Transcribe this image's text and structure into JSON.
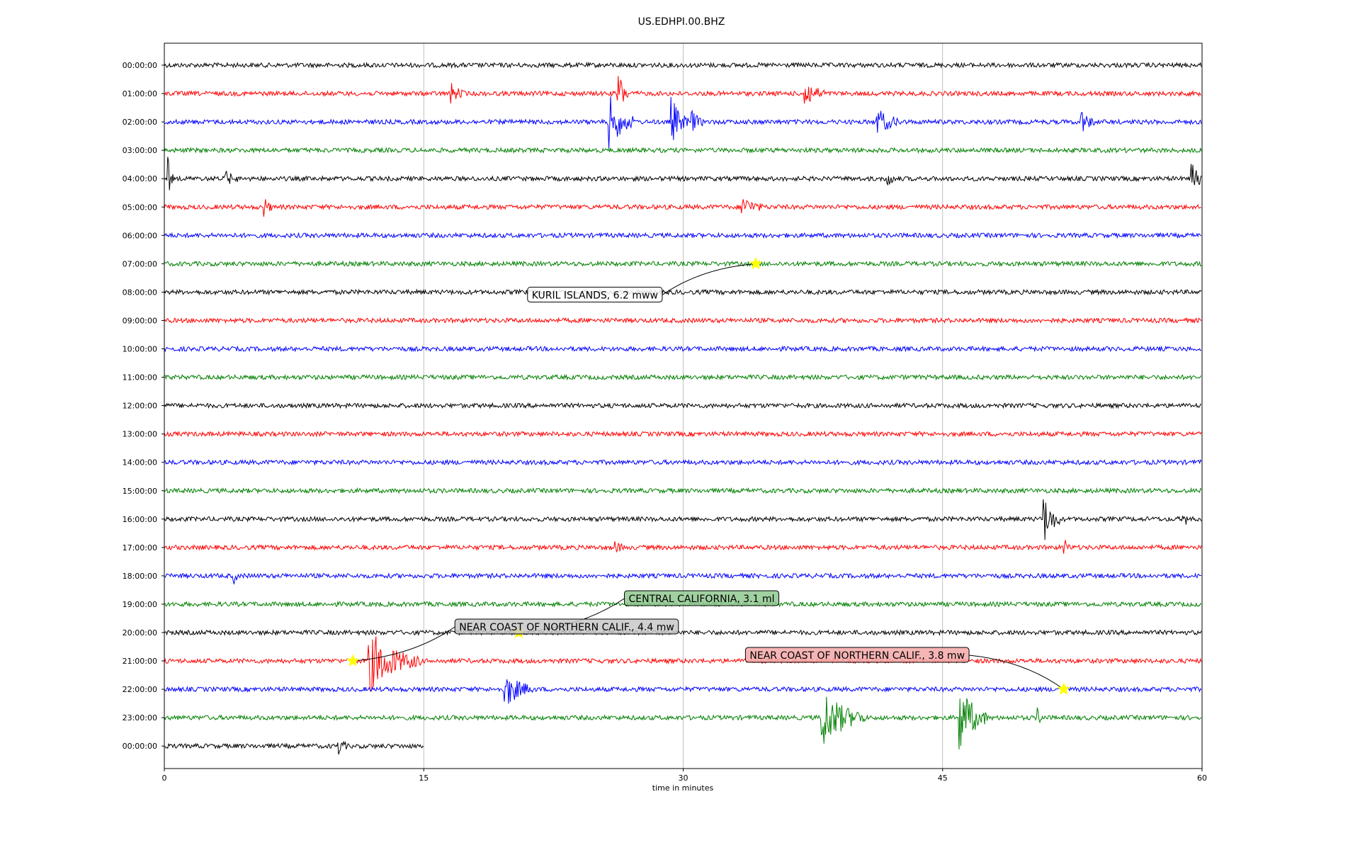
{
  "chart_data": {
    "type": "line",
    "title": "US.EDHPI.00.BHZ",
    "xlabel": "time in minutes",
    "ylabel": "",
    "xlim": [
      0,
      60
    ],
    "xticks": [
      0,
      15,
      30,
      45,
      60
    ],
    "grid_x": true,
    "trace_colors": [
      "#000000",
      "#ff0000",
      "#0000ff",
      "#008000"
    ],
    "rows": [
      {
        "label": "00:00:00",
        "end_minute": 60
      },
      {
        "label": "01:00:00",
        "end_minute": 60
      },
      {
        "label": "02:00:00",
        "end_minute": 60
      },
      {
        "label": "03:00:00",
        "end_minute": 60
      },
      {
        "label": "04:00:00",
        "end_minute": 60
      },
      {
        "label": "05:00:00",
        "end_minute": 60
      },
      {
        "label": "06:00:00",
        "end_minute": 60
      },
      {
        "label": "07:00:00",
        "end_minute": 60
      },
      {
        "label": "08:00:00",
        "end_minute": 60
      },
      {
        "label": "09:00:00",
        "end_minute": 60
      },
      {
        "label": "10:00:00",
        "end_minute": 60
      },
      {
        "label": "11:00:00",
        "end_minute": 60
      },
      {
        "label": "12:00:00",
        "end_minute": 60
      },
      {
        "label": "13:00:00",
        "end_minute": 60
      },
      {
        "label": "14:00:00",
        "end_minute": 60
      },
      {
        "label": "15:00:00",
        "end_minute": 60
      },
      {
        "label": "16:00:00",
        "end_minute": 60
      },
      {
        "label": "17:00:00",
        "end_minute": 60
      },
      {
        "label": "18:00:00",
        "end_minute": 60
      },
      {
        "label": "19:00:00",
        "end_minute": 60
      },
      {
        "label": "20:00:00",
        "end_minute": 60
      },
      {
        "label": "21:00:00",
        "end_minute": 60
      },
      {
        "label": "22:00:00",
        "end_minute": 60
      },
      {
        "label": "23:00:00",
        "end_minute": 60
      },
      {
        "label": "00:00:00",
        "end_minute": 15
      }
    ],
    "bursts": [
      {
        "row": 1,
        "minute": 26.2,
        "amplitude": 1.8,
        "minutes": 0.6
      },
      {
        "row": 1,
        "minute": 37.0,
        "amplitude": 1.0,
        "minutes": 1.2
      },
      {
        "row": 1,
        "minute": 16.6,
        "amplitude": 0.6,
        "minutes": 0.8
      },
      {
        "row": 2,
        "minute": 25.7,
        "amplitude": 1.8,
        "minutes": 1.5
      },
      {
        "row": 2,
        "minute": 29.3,
        "amplitude": 1.6,
        "minutes": 1.0
      },
      {
        "row": 2,
        "minute": 30.5,
        "amplitude": 0.7,
        "minutes": 0.7
      },
      {
        "row": 2,
        "minute": 41.2,
        "amplitude": 0.9,
        "minutes": 1.4
      },
      {
        "row": 2,
        "minute": 53.0,
        "amplitude": 0.8,
        "minutes": 0.8
      },
      {
        "row": 4,
        "minute": 59.4,
        "amplitude": 1.5,
        "minutes": 0.6
      },
      {
        "row": 4,
        "minute": 0.2,
        "amplitude": 1.4,
        "minutes": 0.3
      },
      {
        "row": 4,
        "minute": 3.5,
        "amplitude": 0.5,
        "minutes": 0.8
      },
      {
        "row": 4,
        "minute": 41.8,
        "amplitude": 0.5,
        "minutes": 0.5
      },
      {
        "row": 5,
        "minute": 33.4,
        "amplitude": 0.7,
        "minutes": 1.2
      },
      {
        "row": 5,
        "minute": 5.8,
        "amplitude": 0.5,
        "minutes": 0.5
      },
      {
        "row": 16,
        "minute": 50.8,
        "amplitude": 1.7,
        "minutes": 1.0
      },
      {
        "row": 16,
        "minute": 58.9,
        "amplitude": 0.5,
        "minutes": 0.5
      },
      {
        "row": 17,
        "minute": 52.0,
        "amplitude": 0.6,
        "minutes": 0.4
      },
      {
        "row": 17,
        "minute": 26.0,
        "amplitude": 0.4,
        "minutes": 0.6
      },
      {
        "row": 18,
        "minute": 4.0,
        "amplitude": 0.5,
        "minutes": 0.3
      },
      {
        "row": 21,
        "minute": 11.8,
        "amplitude": 2.0,
        "minutes": 3.0
      },
      {
        "row": 22,
        "minute": 19.7,
        "amplitude": 1.2,
        "minutes": 1.6
      },
      {
        "row": 23,
        "minute": 38.0,
        "amplitude": 2.0,
        "minutes": 2.5
      },
      {
        "row": 23,
        "minute": 46.0,
        "amplitude": 2.2,
        "minutes": 1.6
      },
      {
        "row": 23,
        "minute": 50.5,
        "amplitude": 0.5,
        "minutes": 0.4
      },
      {
        "row": 24,
        "minute": 10.0,
        "amplitude": 0.6,
        "minutes": 0.6
      }
    ],
    "annotations": [
      {
        "text": "KURIL ISLANDS, 6.2 mww",
        "row": 7,
        "minute": 34.2,
        "box_row": 8.1,
        "box_minute": 21.0,
        "face": "#ffffff"
      },
      {
        "text": "CENTRAL CALIFORNIA, 3.1 ml",
        "row": 20,
        "minute": 20.5,
        "box_row": 18.8,
        "box_minute": 26.6,
        "face": "#90c890"
      },
      {
        "text": "NEAR COAST OF NORTHERN CALIF., 4.4 mw",
        "row": 21,
        "minute": 10.9,
        "box_row": 19.8,
        "box_minute": 16.8,
        "face": "#c8c8c8"
      },
      {
        "text": "NEAR COAST OF NORTHERN CALIF., 3.8 mw",
        "row": 22,
        "minute": 52.0,
        "box_row": 20.8,
        "box_minute": 33.6,
        "face": "#f4a8a8"
      }
    ],
    "marker_color": "#ffff00"
  }
}
